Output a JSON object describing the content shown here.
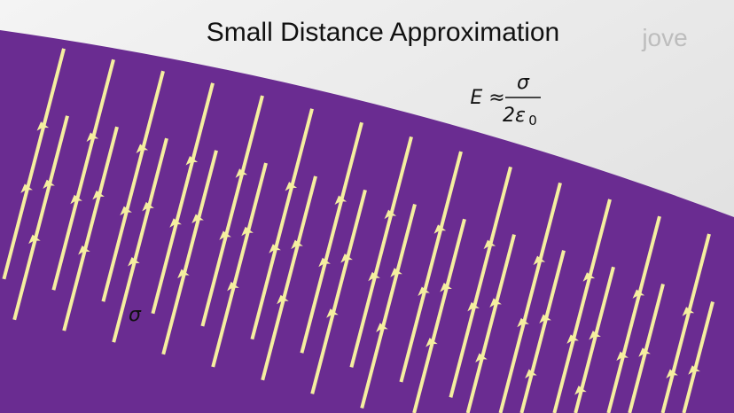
{
  "title": "Small Distance Approximation",
  "logo": "jove",
  "formula": {
    "lhs": "E ≈",
    "numerator": "σ",
    "denominator": "2ε",
    "subscript": "0"
  },
  "surface_label": "σ"
}
